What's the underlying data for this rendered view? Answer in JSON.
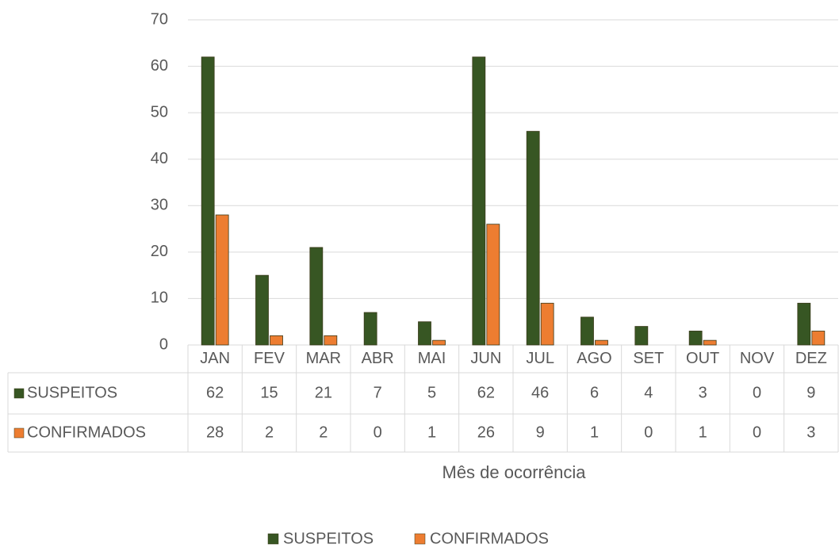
{
  "chart_data": {
    "type": "bar",
    "x_label": "Mês de ocorrência",
    "categories": [
      "JAN",
      "FEV",
      "MAR",
      "ABR",
      "MAI",
      "JUN",
      "JUL",
      "AGO",
      "SET",
      "OUT",
      "NOV",
      "DEZ"
    ],
    "series": [
      {
        "name": "SUSPEITOS",
        "color": "#375623",
        "values": [
          62,
          15,
          21,
          7,
          5,
          62,
          46,
          6,
          4,
          3,
          0,
          9
        ]
      },
      {
        "name": "CONFIRMADOS",
        "color": "#ED7D31",
        "values": [
          28,
          2,
          2,
          0,
          1,
          26,
          9,
          1,
          0,
          1,
          0,
          3
        ]
      }
    ],
    "ylim": [
      0,
      70
    ],
    "yticks": [
      0,
      10,
      20,
      30,
      40,
      50,
      60,
      70
    ],
    "grid": true,
    "legend": "bottom",
    "data_table": true
  }
}
